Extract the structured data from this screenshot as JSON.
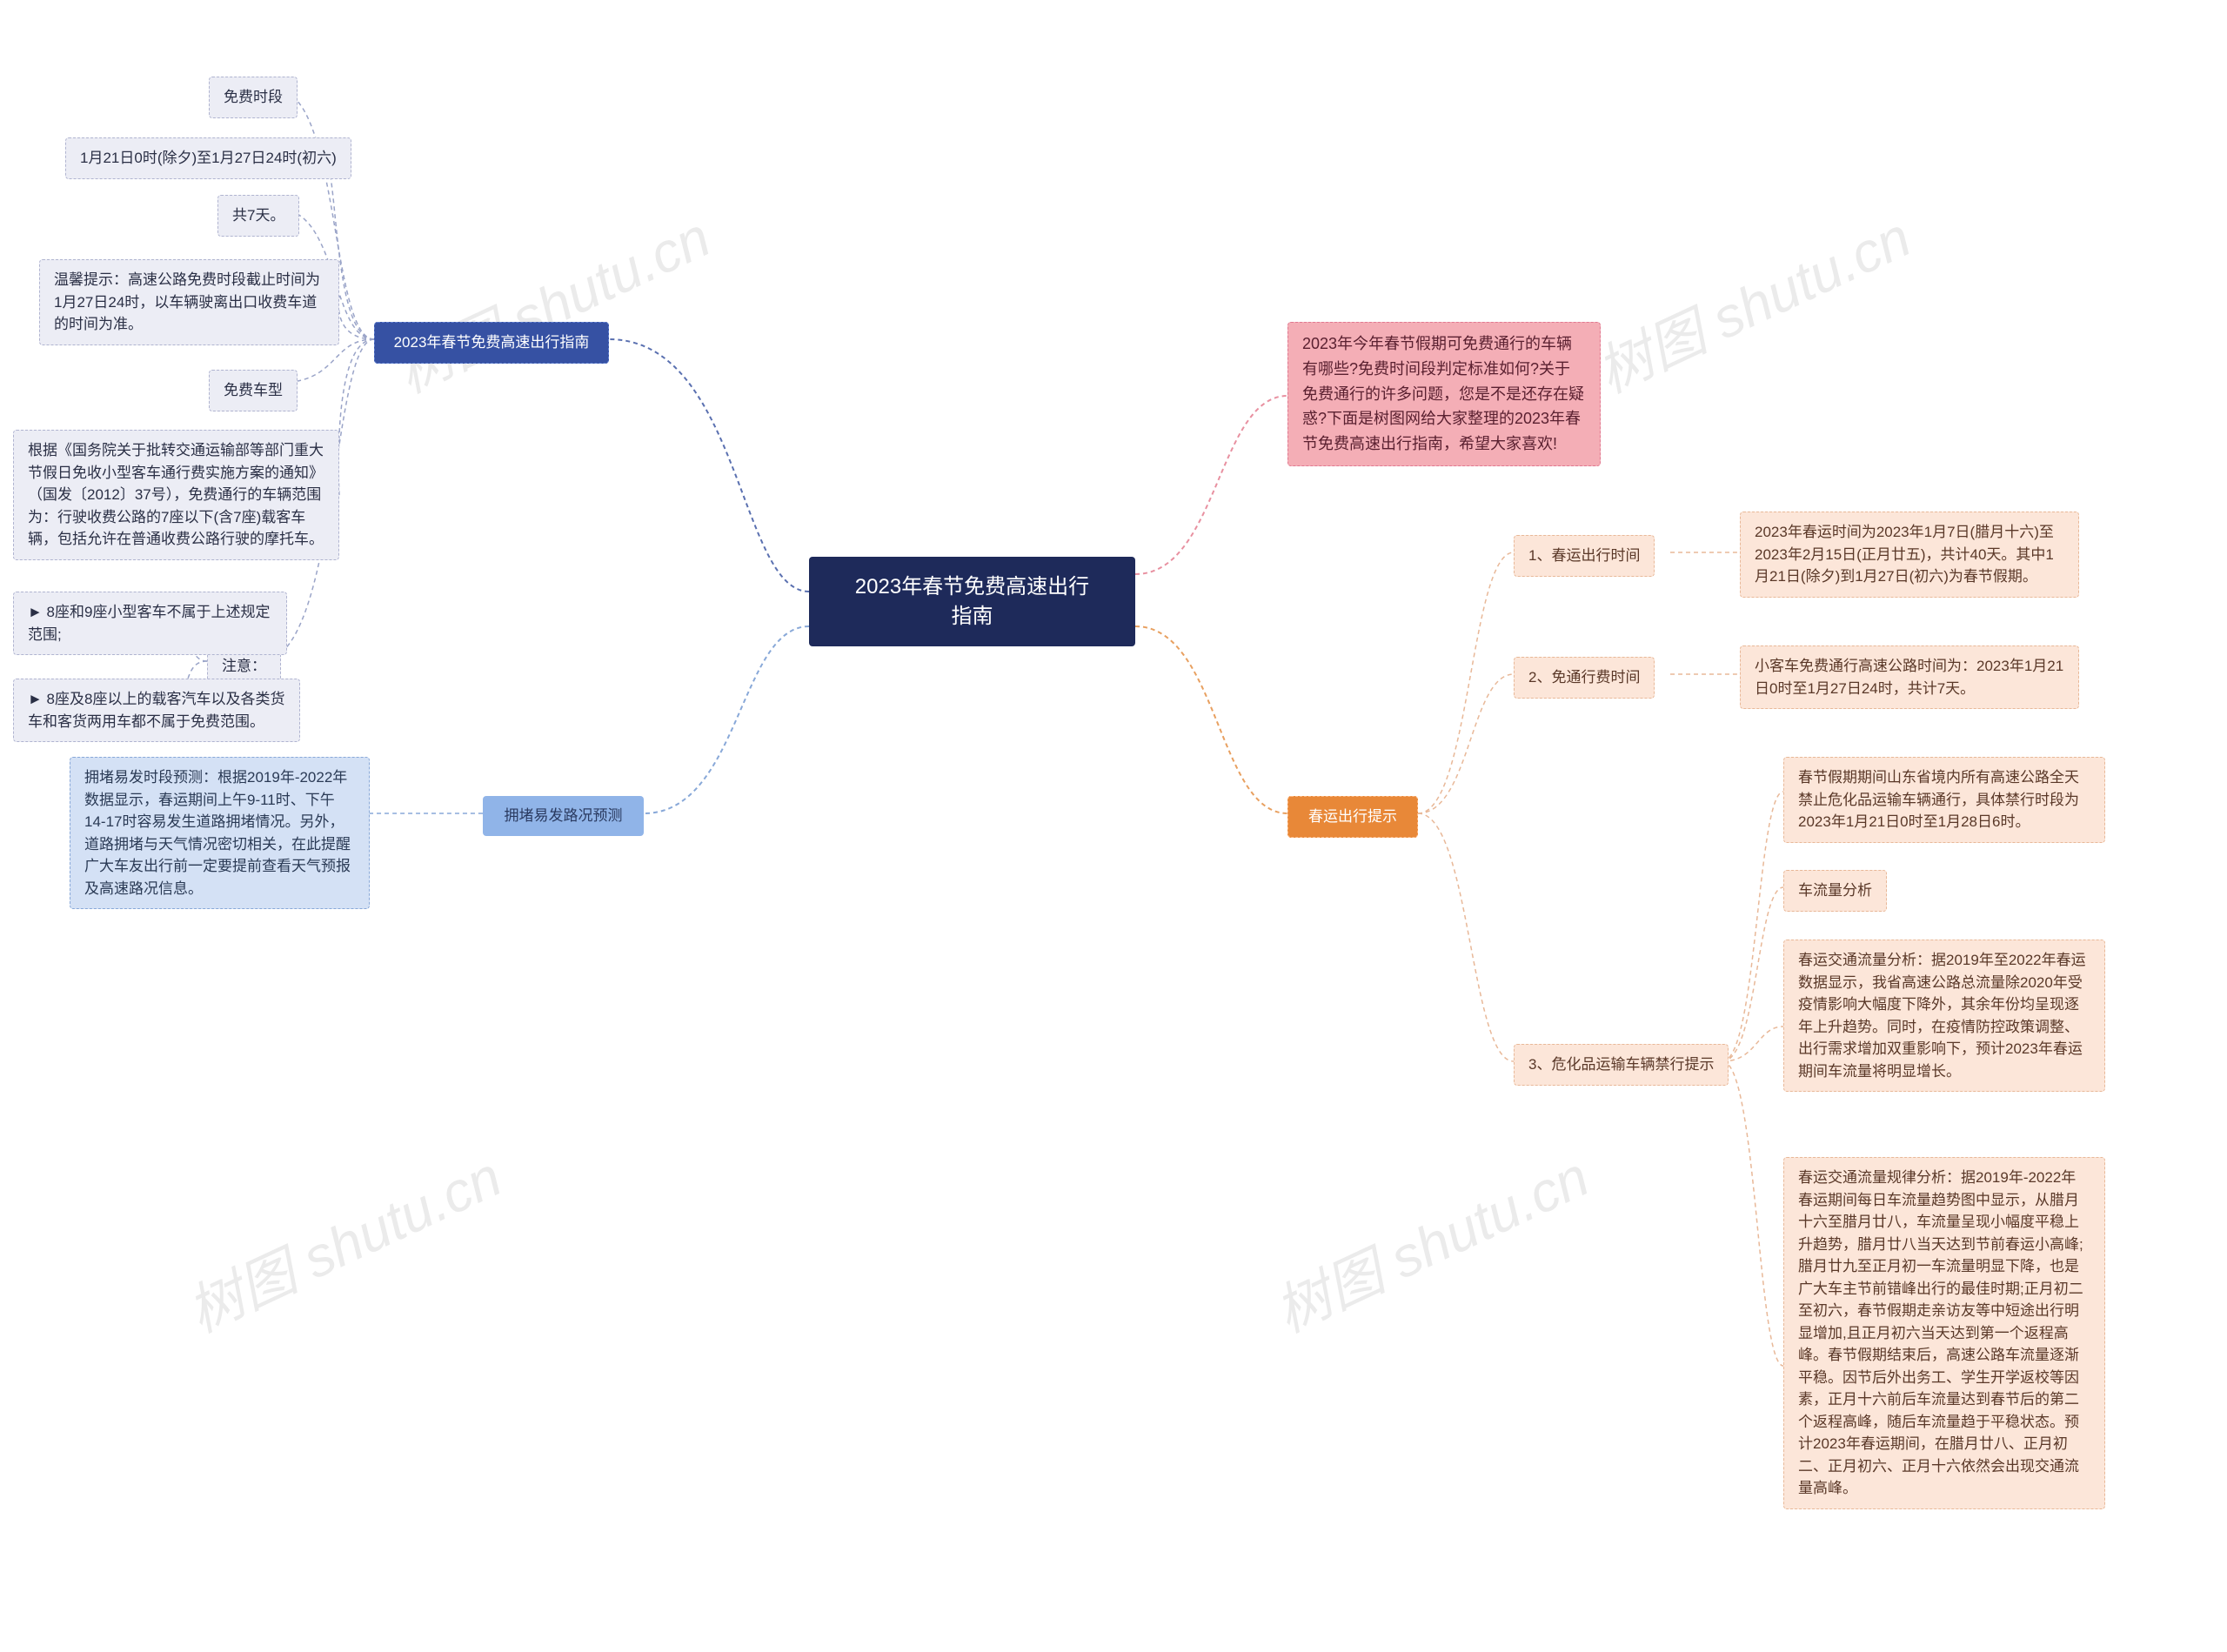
{
  "root": {
    "title": "2023年春节免费高速出行\n指南"
  },
  "left": {
    "guide": {
      "label": "2023年春节免费高速出行指南",
      "free_period": "免费时段",
      "period_range": "1月21日0时(除夕)至1月27日24时(初六)",
      "days": "共7天。",
      "tip": "温馨提示：高速公路免费时段截止时间为1月27日24时，以车辆驶离出口收费车道的时间为准。",
      "free_type": "免费车型",
      "policy": "根据《国务院关于批转交通运输部等部门重大节假日免收小型客车通行费实施方案的通知》（国发〔2012〕37号），免费通行的车辆范围为：行驶收费公路的7座以下(含7座)载客车辆，包括允许在普通收费公路行驶的摩托车。",
      "notice_label": "注意：",
      "notice1": "► 8座和9座小型客车不属于上述规定范围;",
      "notice2": "► 8座及8座以上的载客汽车以及各类货车和客货两用车都不属于免费范围。"
    },
    "congestion": {
      "label": "拥堵易发路况预测",
      "text": "拥堵易发时段预测：根据2019年-2022年数据显示，春运期间上午9-11时、下午14-17时容易发生道路拥堵情况。另外，道路拥堵与天气情况密切相关，在此提醒广大车友出行前一定要提前查看天气预报及高速路况信息。"
    }
  },
  "right": {
    "intro": "2023年今年春节假期可免费通行的车辆有哪些?免费时间段判定标准如何?关于免费通行的许多问题，您是不是还存在疑惑?下面是树图网给大家整理的2023年春节免费高速出行指南，希望大家喜欢!",
    "tips": {
      "label": "春运出行提示",
      "t1_label": "1、春运出行时间",
      "t1_text": "2023年春运时间为2023年1月7日(腊月十六)至2023年2月15日(正月廿五)，共计40天。其中1月21日(除夕)到1月27日(初六)为春节假期。",
      "t2_label": "2、免通行费时间",
      "t2_text": "小客车免费通行高速公路时间为：2023年1月21日0时至1月27日24时，共计7天。",
      "t3_label": "3、危化品运输车辆禁行提示",
      "t3_a": "春节假期期间山东省境内所有高速公路全天禁止危化品运输车辆通行，具体禁行时段为2023年1月21日0时至1月28日6时。",
      "t3_b": "车流量分析",
      "t3_c": "春运交通流量分析：据2019年至2022年春运数据显示，我省高速公路总流量除2020年受疫情影响大幅度下降外，其余年份均呈现逐年上升趋势。同时，在疫情防控政策调整、出行需求增加双重影响下，预计2023年春运期间车流量将明显增长。",
      "t3_d": "春运交通流量规律分析：据2019年-2022年春运期间每日车流量趋势图中显示，从腊月十六至腊月廿八，车流量呈现小幅度平稳上升趋势，腊月廿八当天达到节前春运小高峰;腊月廿九至正月初一车流量明显下降，也是广大车主节前错峰出行的最佳时期;正月初二至初六，春节假期走亲访友等中短途出行明显增加,且正月初六当天达到第一个返程高峰。春节假期结束后，高速公路车流量逐渐平稳。因节后外出务工、学生开学返校等因素，正月十六前后车流量达到春节后的第二个返程高峰，随后车流量趋于平稳状态。预计2023年春运期间，在腊月廿八、正月初二、正月初六、正月十六依然会出现交通流量高峰。"
    }
  },
  "watermarks": [
    "树图 shutu.cn",
    "树图 shutu.cn",
    "树图 shutu.cn",
    "树图 shutu.cn"
  ],
  "colors": {
    "root_bg": "#1e2a5a",
    "branch_blue": "#3651a3",
    "branch_lightblue": "#90b4e8",
    "branch_orange": "#e88838",
    "leaf_pale": "#ecedf5",
    "leaf_lightblue": "#d4e1f5",
    "leaf_pink": "#f4aeb6",
    "leaf_peach": "#fce6d9",
    "conn_blue": "#5a70b0",
    "conn_lightblue": "#88a8d8",
    "conn_orange": "#e8a060",
    "conn_pink": "#e890a0"
  }
}
